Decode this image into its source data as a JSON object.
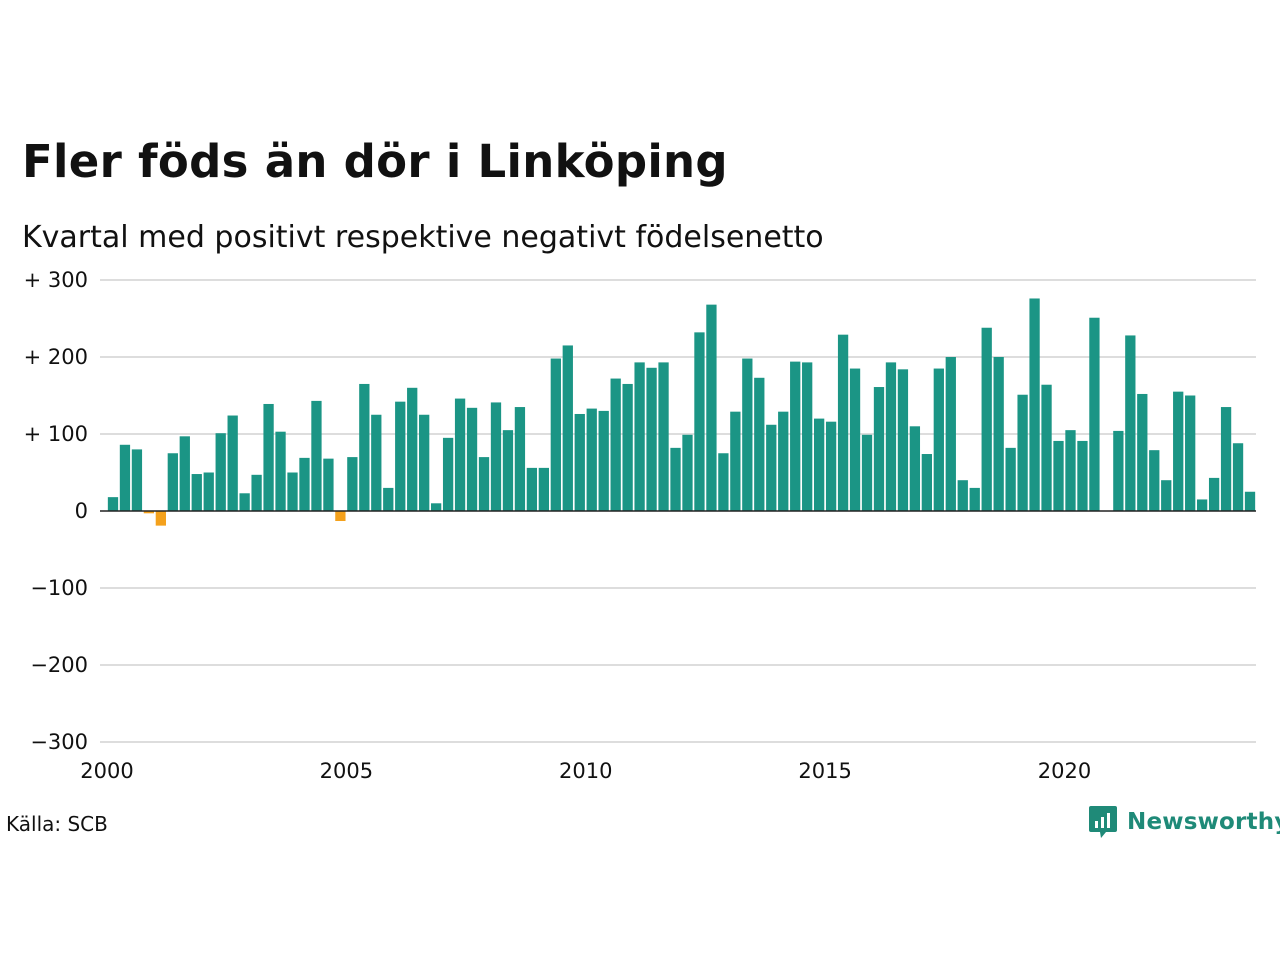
{
  "title": "Fler föds än dör i Linköping",
  "subtitle": "Kvartal med positivt respektive negativt födelsenetto",
  "source": "Källa: SCB",
  "brand": {
    "name": "Newsworthy",
    "icon": "newsworthy-logo-icon",
    "color": "#1f8a78"
  },
  "colors": {
    "positive": "#1b9585",
    "negative": "#f4a11c",
    "grid": "#dddddd",
    "axis": "#222222"
  },
  "chart_data": {
    "type": "bar",
    "title": "Fler föds än dör i Linköping",
    "subtitle": "Kvartal med positivt respektive negativt födelsenetto",
    "x_unit": "quarter",
    "x_start": "2000 Q1",
    "ylim": [
      -300,
      300
    ],
    "y_ticks": [
      300,
      200,
      100,
      0,
      -100,
      -200,
      -300
    ],
    "y_tick_labels": [
      "+ 300",
      "+ 200",
      "+ 100",
      "0",
      "−100",
      "−200",
      "−300"
    ],
    "x_ticks": [
      2000,
      2005,
      2010,
      2015,
      2020
    ],
    "x_tick_labels": [
      "2000",
      "2005",
      "2010",
      "2015",
      "2020"
    ],
    "grid": "horizontal",
    "values": [
      18,
      86,
      80,
      -3,
      -19,
      75,
      97,
      48,
      50,
      101,
      124,
      23,
      47,
      139,
      103,
      50,
      69,
      143,
      68,
      -13,
      70,
      165,
      125,
      30,
      142,
      160,
      125,
      10,
      95,
      146,
      134,
      70,
      141,
      105,
      135,
      56,
      56,
      198,
      215,
      126,
      133,
      130,
      172,
      165,
      193,
      186,
      193,
      82,
      99,
      232,
      268,
      75,
      129,
      198,
      173,
      112,
      129,
      194,
      193,
      120,
      116,
      229,
      185,
      99,
      161,
      193,
      184,
      110,
      74,
      185,
      200,
      40,
      30,
      238,
      200,
      82,
      151,
      276,
      164,
      91,
      105,
      91,
      251,
      0,
      104,
      228,
      152,
      79,
      40,
      155,
      150,
      15,
      43,
      135,
      88,
      25
    ]
  }
}
